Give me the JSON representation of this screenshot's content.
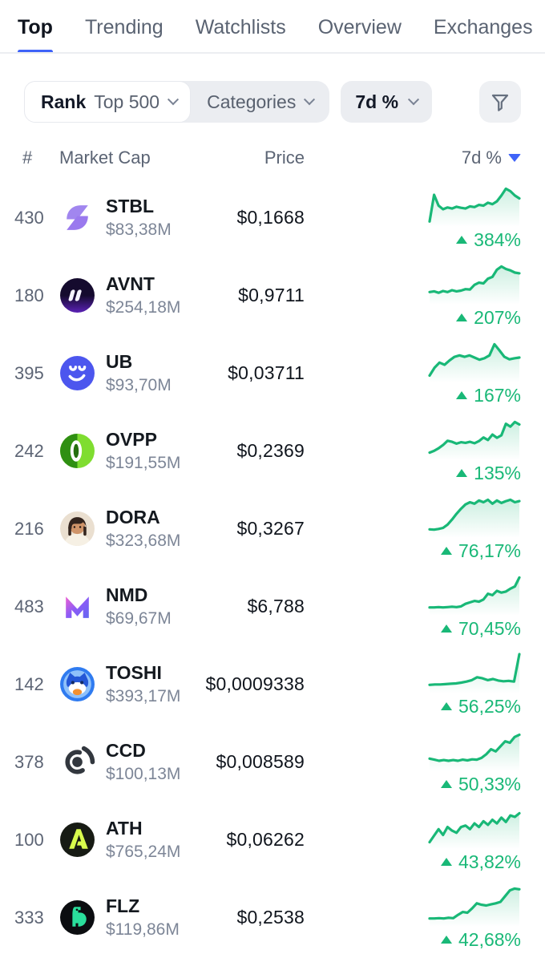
{
  "colors": {
    "green": "#19b877",
    "blue": "#3f63f8",
    "dark_text": "#10151f",
    "gray_text": "#5a6372",
    "pill_bg": "#ebedf1"
  },
  "tabs": {
    "items": [
      {
        "label": "Top",
        "active": true
      },
      {
        "label": "Trending",
        "active": false
      },
      {
        "label": "Watchlists",
        "active": false
      },
      {
        "label": "Overview",
        "active": false
      },
      {
        "label": "Exchanges",
        "active": false
      }
    ]
  },
  "filters": {
    "rank_label": "Rank",
    "rank_value": "Top 500",
    "categories_label": "Categories",
    "period_label": "7d %",
    "filter_button_icon": "funnel-icon"
  },
  "table": {
    "headers": {
      "rank": "#",
      "market_cap": "Market Cap",
      "price": "Price",
      "change": "7d %"
    },
    "sort": {
      "column": "7d %",
      "direction": "desc"
    }
  },
  "rows": [
    {
      "rank": "430",
      "symbol": "STBL",
      "market_cap": "$83,38M",
      "price": "$0,1668",
      "change": "384%",
      "direction": "up",
      "icon": "stbl-logo",
      "spark": [
        0.06,
        0.8,
        0.5,
        0.4,
        0.45,
        0.42,
        0.47,
        0.44,
        0.42,
        0.48,
        0.46,
        0.52,
        0.5,
        0.58,
        0.54,
        0.62,
        0.78,
        0.97,
        0.9,
        0.78,
        0.7
      ]
    },
    {
      "rank": "180",
      "symbol": "AVNT",
      "market_cap": "$254,18M",
      "price": "$0,9711",
      "change": "207%",
      "direction": "up",
      "icon": "avnt-logo",
      "spark": [
        0.26,
        0.28,
        0.24,
        0.29,
        0.26,
        0.31,
        0.28,
        0.3,
        0.34,
        0.33,
        0.46,
        0.52,
        0.5,
        0.63,
        0.68,
        0.88,
        0.97,
        0.9,
        0.86,
        0.8,
        0.78
      ]
    },
    {
      "rank": "395",
      "symbol": "UB",
      "market_cap": "$93,70M",
      "price": "$0,03711",
      "change": "167%",
      "direction": "up",
      "icon": "ub-logo",
      "spark": [
        0.1,
        0.32,
        0.46,
        0.4,
        0.52,
        0.62,
        0.66,
        0.62,
        0.66,
        0.6,
        0.54,
        0.58,
        0.66,
        0.97,
        0.8,
        0.62,
        0.55,
        0.58,
        0.6
      ]
    },
    {
      "rank": "242",
      "symbol": "OVPP",
      "market_cap": "$191,55M",
      "price": "$0,2369",
      "change": "135%",
      "direction": "up",
      "icon": "ovpp-logo",
      "spark": [
        0.12,
        0.17,
        0.24,
        0.33,
        0.45,
        0.42,
        0.37,
        0.41,
        0.39,
        0.42,
        0.38,
        0.44,
        0.54,
        0.47,
        0.62,
        0.53,
        0.6,
        0.92,
        0.84,
        0.97,
        0.9
      ]
    },
    {
      "rank": "216",
      "symbol": "DORA",
      "market_cap": "$323,68M",
      "price": "$0,3267",
      "change": "76,17%",
      "direction": "up",
      "icon": "dora-avatar",
      "spark": [
        0.15,
        0.14,
        0.16,
        0.19,
        0.28,
        0.42,
        0.58,
        0.72,
        0.84,
        0.9,
        0.86,
        0.95,
        0.9,
        0.97,
        0.86,
        0.95,
        0.88,
        0.93,
        0.97,
        0.9,
        0.93
      ]
    },
    {
      "rank": "483",
      "symbol": "NMD",
      "market_cap": "$69,67M",
      "price": "$6,788",
      "change": "70,45%",
      "direction": "up",
      "icon": "nmd-logo",
      "spark": [
        0.14,
        0.14,
        0.15,
        0.14,
        0.15,
        0.16,
        0.15,
        0.17,
        0.24,
        0.28,
        0.32,
        0.3,
        0.36,
        0.52,
        0.48,
        0.6,
        0.55,
        0.58,
        0.66,
        0.72,
        0.97
      ]
    },
    {
      "rank": "142",
      "symbol": "TOSHI",
      "market_cap": "$393,17M",
      "price": "$0,0009338",
      "change": "56,25%",
      "direction": "up",
      "icon": "toshi-logo",
      "spark": [
        0.15,
        0.16,
        0.16,
        0.17,
        0.18,
        0.19,
        0.21,
        0.24,
        0.28,
        0.36,
        0.33,
        0.28,
        0.31,
        0.27,
        0.25,
        0.26,
        0.24,
        1.0
      ]
    },
    {
      "rank": "378",
      "symbol": "CCD",
      "market_cap": "$100,13M",
      "price": "$0,008589",
      "change": "50,33%",
      "direction": "up",
      "icon": "ccd-logo",
      "spark": [
        0.26,
        0.23,
        0.2,
        0.22,
        0.2,
        0.22,
        0.2,
        0.23,
        0.21,
        0.24,
        0.23,
        0.28,
        0.38,
        0.52,
        0.46,
        0.6,
        0.74,
        0.7,
        0.86,
        0.92
      ]
    },
    {
      "rank": "100",
      "symbol": "ATH",
      "market_cap": "$765,24M",
      "price": "$0,06262",
      "change": "43,82%",
      "direction": "up",
      "icon": "ath-logo",
      "spark": [
        0.1,
        0.28,
        0.46,
        0.3,
        0.52,
        0.42,
        0.36,
        0.52,
        0.56,
        0.46,
        0.62,
        0.52,
        0.68,
        0.58,
        0.72,
        0.62,
        0.78,
        0.66,
        0.84,
        0.8,
        0.9
      ]
    },
    {
      "rank": "333",
      "symbol": "FLZ",
      "market_cap": "$119,86M",
      "price": "$0,2538",
      "change": "42,68%",
      "direction": "up",
      "icon": "flz-logo",
      "spark": [
        0.14,
        0.14,
        0.15,
        0.14,
        0.16,
        0.15,
        0.24,
        0.32,
        0.3,
        0.42,
        0.56,
        0.52,
        0.5,
        0.53,
        0.56,
        0.6,
        0.76,
        0.92,
        0.97,
        0.95
      ]
    }
  ]
}
